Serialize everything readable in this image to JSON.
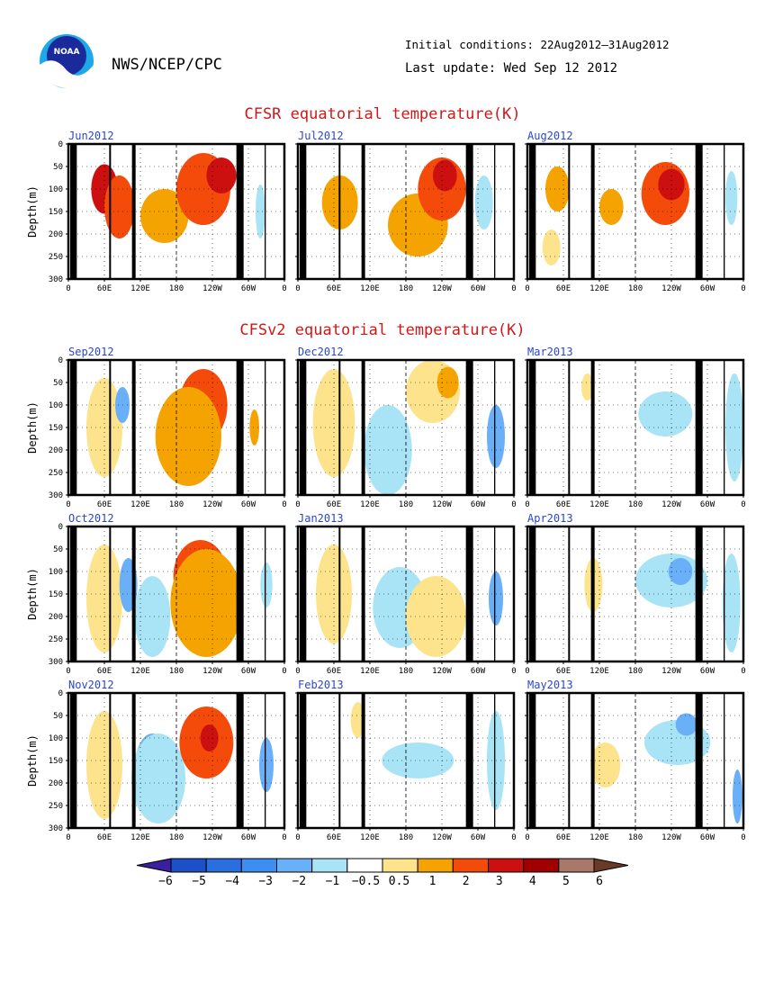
{
  "header": {
    "agency": "NWS/NCEP/CPC",
    "logo_text": "NOAA",
    "initial_conditions": "Initial conditions: 22Aug2012–31Aug2012",
    "last_update": "Last update: Wed Sep 12 2012"
  },
  "sections": [
    {
      "id": "cfsr",
      "title": "CFSR equatorial temperature(K)"
    },
    {
      "id": "cfsv2",
      "title": "CFSv2 equatorial temperature(K)"
    }
  ],
  "axes": {
    "ylabel": "Depth(m)",
    "xticks": [
      "0",
      "60E",
      "120E",
      "180",
      "120W",
      "60W",
      "0"
    ],
    "yticks": [
      "0",
      "50",
      "100",
      "150",
      "200",
      "250",
      "300"
    ],
    "y_range_m": [
      0,
      300
    ],
    "x_range_deg_east": [
      0,
      360
    ]
  },
  "colorbar": {
    "labels": [
      "−6",
      "−5",
      "−4",
      "−3",
      "−2",
      "−1",
      "−0.5",
      "0.5",
      "1",
      "2",
      "3",
      "4",
      "5",
      "6"
    ],
    "colors": [
      "#3a1f9e",
      "#1c50c8",
      "#2a6ee0",
      "#3c8ef2",
      "#6ab0f8",
      "#a8e4f6",
      "#ffffff",
      "#fde48c",
      "#f5a300",
      "#f44a0a",
      "#cc1010",
      "#a00000",
      "#a87868",
      "#6a3a28"
    ]
  },
  "chart_data": [
    {
      "type": "heatmap",
      "panel": "Jun2012",
      "group": "CFSR",
      "title": "Jun2012",
      "ylabel": "Depth(m)",
      "yunits": "m",
      "xrange": [
        0,
        360
      ],
      "yrange": [
        0,
        300
      ],
      "anomalies": [
        {
          "lon": 60,
          "depth": 100,
          "value": 3.0,
          "rx": 22,
          "ry": 55
        },
        {
          "lon": 85,
          "depth": 140,
          "value": 2.0,
          "rx": 25,
          "ry": 70
        },
        {
          "lon": 160,
          "depth": 160,
          "value": 1.0,
          "rx": 40,
          "ry": 60
        },
        {
          "lon": 225,
          "depth": 100,
          "value": 2.0,
          "rx": 45,
          "ry": 80
        },
        {
          "lon": 255,
          "depth": 70,
          "value": 3.0,
          "rx": 25,
          "ry": 40
        },
        {
          "lon": 320,
          "depth": 150,
          "value": -1.0,
          "rx": 8,
          "ry": 60
        }
      ]
    },
    {
      "type": "heatmap",
      "panel": "Jul2012",
      "group": "CFSR",
      "title": "Jul2012",
      "ylabel": "Depth(m)",
      "yunits": "m",
      "xrange": [
        0,
        360
      ],
      "yrange": [
        0,
        300
      ],
      "anomalies": [
        {
          "lon": 70,
          "depth": 130,
          "value": 1.0,
          "rx": 30,
          "ry": 60
        },
        {
          "lon": 200,
          "depth": 180,
          "value": 1.0,
          "rx": 50,
          "ry": 70
        },
        {
          "lon": 240,
          "depth": 100,
          "value": 2.0,
          "rx": 40,
          "ry": 70
        },
        {
          "lon": 245,
          "depth": 70,
          "value": 3.0,
          "rx": 20,
          "ry": 35
        },
        {
          "lon": 310,
          "depth": 130,
          "value": -1.0,
          "rx": 15,
          "ry": 60
        }
      ]
    },
    {
      "type": "heatmap",
      "panel": "Aug2012",
      "group": "CFSR",
      "title": "Aug2012",
      "ylabel": "Depth(m)",
      "yunits": "m",
      "xrange": [
        0,
        360
      ],
      "yrange": [
        0,
        300
      ],
      "anomalies": [
        {
          "lon": 50,
          "depth": 100,
          "value": 1.0,
          "rx": 20,
          "ry": 50
        },
        {
          "lon": 40,
          "depth": 230,
          "value": 0.5,
          "rx": 15,
          "ry": 40
        },
        {
          "lon": 140,
          "depth": 140,
          "value": 1.0,
          "rx": 20,
          "ry": 40
        },
        {
          "lon": 230,
          "depth": 110,
          "value": 2.0,
          "rx": 40,
          "ry": 70
        },
        {
          "lon": 240,
          "depth": 90,
          "value": 3.0,
          "rx": 22,
          "ry": 35
        },
        {
          "lon": 340,
          "depth": 120,
          "value": -1.0,
          "rx": 10,
          "ry": 60
        }
      ]
    },
    {
      "type": "heatmap",
      "panel": "Sep2012",
      "group": "CFSv2",
      "title": "Sep2012",
      "ylabel": "Depth(m)",
      "yunits": "m",
      "xrange": [
        0,
        360
      ],
      "yrange": [
        0,
        300
      ],
      "anomalies": [
        {
          "lon": 60,
          "depth": 150,
          "value": 0.5,
          "rx": 30,
          "ry": 110
        },
        {
          "lon": 90,
          "depth": 100,
          "value": -2.0,
          "rx": 12,
          "ry": 40
        },
        {
          "lon": 225,
          "depth": 100,
          "value": 2.0,
          "rx": 40,
          "ry": 80
        },
        {
          "lon": 200,
          "depth": 170,
          "value": 1.0,
          "rx": 55,
          "ry": 110
        },
        {
          "lon": 310,
          "depth": 150,
          "value": 1.0,
          "rx": 8,
          "ry": 40
        }
      ]
    },
    {
      "type": "heatmap",
      "panel": "Dec2012",
      "group": "CFSv2",
      "title": "Dec2012",
      "ylabel": "Depth(m)",
      "yunits": "m",
      "xrange": [
        0,
        360
      ],
      "yrange": [
        0,
        300
      ],
      "anomalies": [
        {
          "lon": 60,
          "depth": 140,
          "value": 0.5,
          "rx": 35,
          "ry": 120
        },
        {
          "lon": 150,
          "depth": 170,
          "value": -2.0,
          "rx": 30,
          "ry": 70
        },
        {
          "lon": 150,
          "depth": 200,
          "value": -1.0,
          "rx": 40,
          "ry": 100
        },
        {
          "lon": 225,
          "depth": 70,
          "value": 0.5,
          "rx": 45,
          "ry": 70
        },
        {
          "lon": 250,
          "depth": 50,
          "value": 1.0,
          "rx": 18,
          "ry": 35
        },
        {
          "lon": 330,
          "depth": 170,
          "value": -2.0,
          "rx": 15,
          "ry": 70
        }
      ]
    },
    {
      "type": "heatmap",
      "panel": "Mar2013",
      "group": "CFSv2",
      "title": "Mar2013",
      "ylabel": "Depth(m)",
      "yunits": "m",
      "xrange": [
        0,
        360
      ],
      "yrange": [
        0,
        300
      ],
      "anomalies": [
        {
          "lon": 100,
          "depth": 60,
          "value": 0.5,
          "rx": 10,
          "ry": 30
        },
        {
          "lon": 230,
          "depth": 120,
          "value": -1.0,
          "rx": 45,
          "ry": 50
        },
        {
          "lon": 345,
          "depth": 150,
          "value": -1.0,
          "rx": 15,
          "ry": 120
        }
      ]
    },
    {
      "type": "heatmap",
      "panel": "Oct2012",
      "group": "CFSv2",
      "title": "Oct2012",
      "ylabel": "Depth(m)",
      "yunits": "m",
      "xrange": [
        0,
        360
      ],
      "yrange": [
        0,
        300
      ],
      "anomalies": [
        {
          "lon": 60,
          "depth": 160,
          "value": 0.5,
          "rx": 30,
          "ry": 120
        },
        {
          "lon": 100,
          "depth": 130,
          "value": -2.0,
          "rx": 15,
          "ry": 60
        },
        {
          "lon": 140,
          "depth": 200,
          "value": -1.0,
          "rx": 30,
          "ry": 90
        },
        {
          "lon": 220,
          "depth": 110,
          "value": 2.0,
          "rx": 45,
          "ry": 80
        },
        {
          "lon": 230,
          "depth": 170,
          "value": 1.0,
          "rx": 60,
          "ry": 120
        },
        {
          "lon": 330,
          "depth": 130,
          "value": -1.0,
          "rx": 10,
          "ry": 50
        }
      ]
    },
    {
      "type": "heatmap",
      "panel": "Jan2013",
      "group": "CFSv2",
      "title": "Jan2013",
      "ylabel": "Depth(m)",
      "yunits": "m",
      "xrange": [
        0,
        360
      ],
      "yrange": [
        0,
        300
      ],
      "anomalies": [
        {
          "lon": 60,
          "depth": 150,
          "value": 0.5,
          "rx": 30,
          "ry": 110
        },
        {
          "lon": 160,
          "depth": 160,
          "value": -2.0,
          "rx": 25,
          "ry": 50
        },
        {
          "lon": 170,
          "depth": 180,
          "value": -1.0,
          "rx": 45,
          "ry": 90
        },
        {
          "lon": 230,
          "depth": 200,
          "value": 0.5,
          "rx": 50,
          "ry": 90
        },
        {
          "lon": 330,
          "depth": 160,
          "value": -2.0,
          "rx": 12,
          "ry": 60
        }
      ]
    },
    {
      "type": "heatmap",
      "panel": "Apr2013",
      "group": "CFSv2",
      "title": "Apr2013",
      "ylabel": "Depth(m)",
      "yunits": "m",
      "xrange": [
        0,
        360
      ],
      "yrange": [
        0,
        300
      ],
      "anomalies": [
        {
          "lon": 110,
          "depth": 130,
          "value": 0.5,
          "rx": 15,
          "ry": 60
        },
        {
          "lon": 240,
          "depth": 120,
          "value": -1.0,
          "rx": 60,
          "ry": 60
        },
        {
          "lon": 255,
          "depth": 100,
          "value": -2.0,
          "rx": 20,
          "ry": 30
        },
        {
          "lon": 340,
          "depth": 170,
          "value": -1.0,
          "rx": 15,
          "ry": 110
        }
      ]
    },
    {
      "type": "heatmap",
      "panel": "Nov2012",
      "group": "CFSv2",
      "title": "Nov2012",
      "ylabel": "Depth(m)",
      "yunits": "m",
      "xrange": [
        0,
        360
      ],
      "yrange": [
        0,
        300
      ],
      "anomalies": [
        {
          "lon": 60,
          "depth": 160,
          "value": 0.5,
          "rx": 30,
          "ry": 120
        },
        {
          "lon": 140,
          "depth": 170,
          "value": -2.0,
          "rx": 30,
          "ry": 80
        },
        {
          "lon": 150,
          "depth": 190,
          "value": -1.0,
          "rx": 45,
          "ry": 100
        },
        {
          "lon": 230,
          "depth": 110,
          "value": 2.0,
          "rx": 45,
          "ry": 80
        },
        {
          "lon": 235,
          "depth": 100,
          "value": 3.0,
          "rx": 15,
          "ry": 30
        },
        {
          "lon": 330,
          "depth": 160,
          "value": -2.0,
          "rx": 12,
          "ry": 60
        }
      ]
    },
    {
      "type": "heatmap",
      "panel": "Feb2013",
      "group": "CFSv2",
      "title": "Feb2013",
      "ylabel": "Depth(m)",
      "yunits": "m",
      "xrange": [
        0,
        360
      ],
      "yrange": [
        0,
        300
      ],
      "anomalies": [
        {
          "lon": 100,
          "depth": 60,
          "value": 0.5,
          "rx": 12,
          "ry": 40
        },
        {
          "lon": 200,
          "depth": 150,
          "value": -1.0,
          "rx": 60,
          "ry": 40
        },
        {
          "lon": 330,
          "depth": 150,
          "value": -1.0,
          "rx": 15,
          "ry": 110
        }
      ]
    },
    {
      "type": "heatmap",
      "panel": "May2013",
      "group": "CFSv2",
      "title": "May2013",
      "ylabel": "Depth(m)",
      "yunits": "m",
      "xrange": [
        0,
        360
      ],
      "yrange": [
        0,
        300
      ],
      "anomalies": [
        {
          "lon": 130,
          "depth": 160,
          "value": 0.5,
          "rx": 25,
          "ry": 50
        },
        {
          "lon": 250,
          "depth": 110,
          "value": -1.0,
          "rx": 55,
          "ry": 50
        },
        {
          "lon": 265,
          "depth": 70,
          "value": -2.0,
          "rx": 18,
          "ry": 25
        },
        {
          "lon": 350,
          "depth": 230,
          "value": -2.0,
          "rx": 8,
          "ry": 60
        }
      ]
    }
  ]
}
